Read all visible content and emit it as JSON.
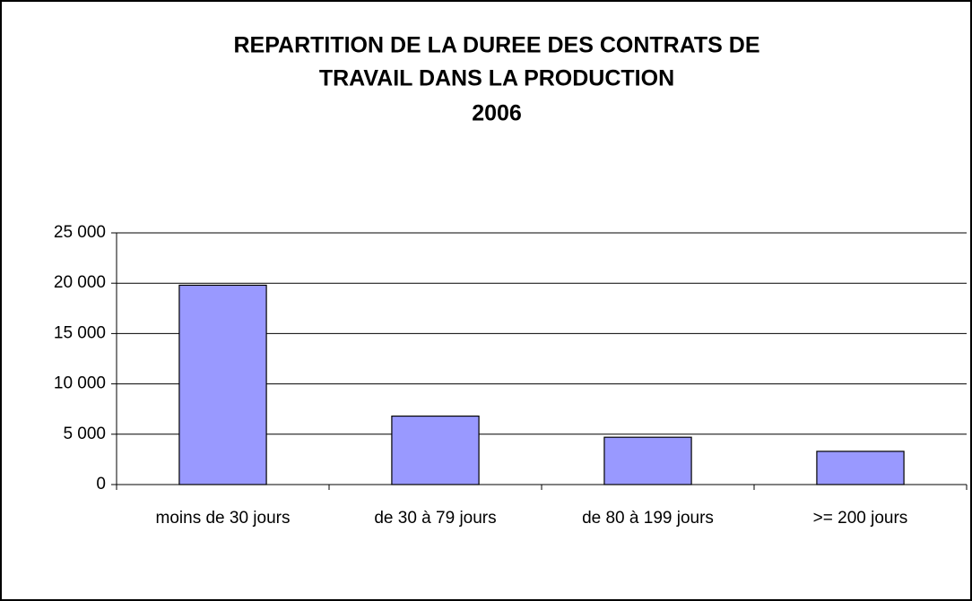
{
  "chart_data": {
    "type": "bar",
    "title": [
      "REPARTITION DE LA DUREE DES CONTRATS DE",
      "TRAVAIL DANS LA PRODUCTION",
      "2006"
    ],
    "categories": [
      "moins de 30 jours",
      "de 30 à 79 jours",
      "de 80 à 199 jours",
      ">= 200 jours"
    ],
    "values": [
      19800,
      6800,
      4700,
      3300
    ],
    "color": "#9999ff",
    "ylim": [
      0,
      25000
    ],
    "yticks": [
      0,
      {
        "value": 5000,
        "label": "5 000"
      },
      {
        "value": 10000,
        "label": "10 000"
      },
      {
        "value": 15000,
        "label": "15 000"
      },
      {
        "value": 20000,
        "label": "20 000"
      },
      {
        "value": 25000,
        "label": "25 000"
      }
    ],
    "grid": true
  }
}
